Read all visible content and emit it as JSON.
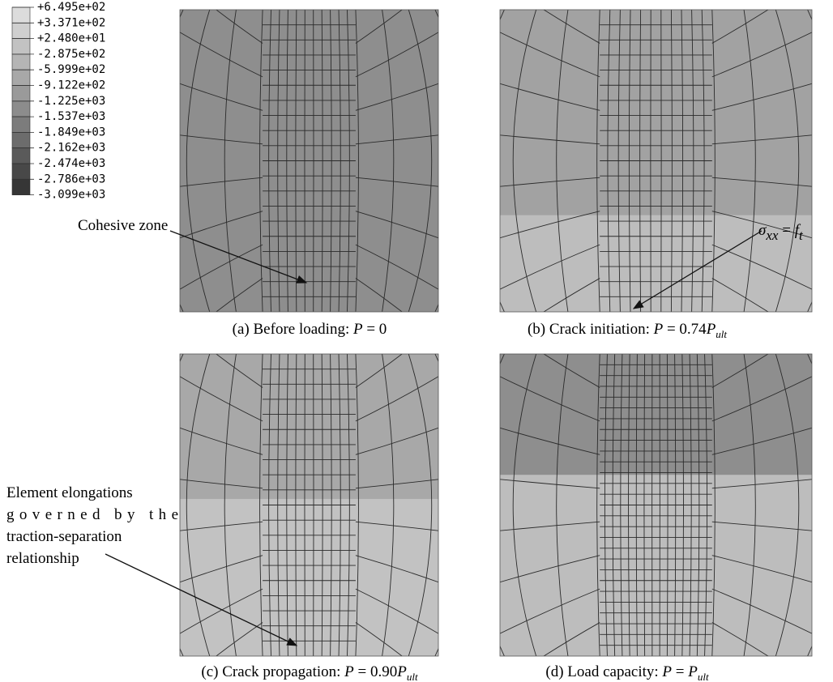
{
  "legend": {
    "labels": [
      "+6.495e+02",
      "+3.371e+02",
      "+2.480e+01",
      "-2.875e+02",
      "-5.999e+02",
      "-9.122e+02",
      "-1.225e+03",
      "-1.537e+03",
      "-1.849e+03",
      "-2.162e+03",
      "-2.474e+03",
      "-2.786e+03",
      "-3.099e+03"
    ],
    "colors": [
      "#dcdcdc",
      "#cfcfcf",
      "#c2c2c2",
      "#b5b5b5",
      "#a8a8a8",
      "#9a9a9a",
      "#8c8c8c",
      "#7c7c7c",
      "#6c6c6c",
      "#5a5a5a",
      "#484848",
      "#363636"
    ]
  },
  "panels": [
    {
      "caption": [
        "(a) Before loading: ",
        "P",
        " = 0"
      ],
      "annotation": "Cohesive zone"
    },
    {
      "caption": [
        "(b) Crack initiation: ",
        "P",
        " = 0.74",
        "P",
        "ult"
      ],
      "annotation": [
        "σ",
        "xx",
        " = ",
        "f",
        "t"
      ]
    },
    {
      "caption": [
        "(c) Crack propagation: ",
        "P",
        " = 0.90",
        "P",
        "ult"
      ],
      "annotation": [
        "Element elongations",
        "governed by the",
        "traction-separation",
        "relationship"
      ]
    },
    {
      "caption": [
        "(d) Load capacity: ",
        "P",
        " = ",
        "P",
        "ult"
      ]
    }
  ]
}
